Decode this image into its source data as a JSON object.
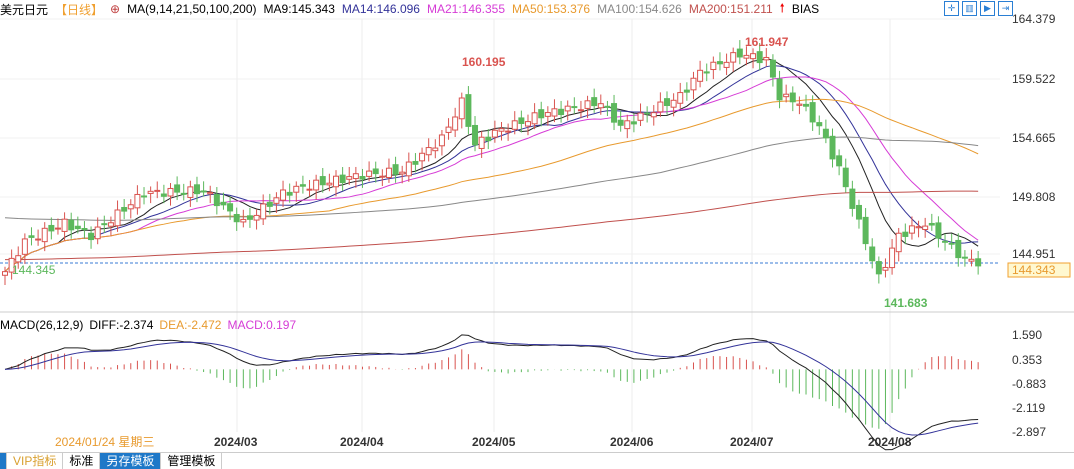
{
  "header": {
    "symbol": "美元日元",
    "period": "【日线】",
    "ma_label": "MA(9,14,21,50,100,200)",
    "ma9": "MA9:145.343",
    "ma14": "MA14:146.096",
    "ma21": "MA21:146.355",
    "ma50": "MA50:153.376",
    "ma100": "MA100:154.626",
    "ma200": "MA200:151.211",
    "bias": "BIAS"
  },
  "macd_header": {
    "label": "MACD(26,12,9)",
    "diff": "DIFF:-2.374",
    "dea": "DEA:-2.472",
    "macd": "MACD:0.197"
  },
  "bottom_tabs": [
    "VIP指标",
    "标准",
    "另存模板",
    "管理模板"
  ],
  "colors": {
    "ma9": "#222222",
    "ma14": "#333399",
    "ma21": "#d63cd6",
    "ma50": "#e89a2e",
    "ma100": "#888888",
    "ma200": "#c0504d",
    "up": "#d9534f",
    "down": "#5cb85c"
  },
  "chart_data": {
    "type": "candlestick",
    "price_ticks": [
      "164.379",
      "159.522",
      "154.665",
      "149.808",
      "144.951"
    ],
    "macd_ticks": [
      "1.590",
      "0.353",
      "-0.883",
      "-2.119",
      "-2.897"
    ],
    "x_labels": [
      "2024/01/24 星期三",
      "2024/03",
      "2024/04",
      "2024/05",
      "2024/06",
      "2024/07",
      "2024/08"
    ],
    "annotations": {
      "high1": "160.195",
      "high2": "161.947",
      "low": "141.683",
      "start": "144.345",
      "last": "144.343"
    },
    "close_keypoints": [
      [
        0,
        143.5
      ],
      [
        3,
        146
      ],
      [
        9,
        147.5
      ],
      [
        13,
        146.5
      ],
      [
        21,
        150
      ],
      [
        30,
        150.2
      ],
      [
        36,
        147.5
      ],
      [
        42,
        150
      ],
      [
        45,
        150.5
      ],
      [
        54,
        151.5
      ],
      [
        60,
        151.8
      ],
      [
        66,
        154.5
      ],
      [
        69,
        157.5
      ],
      [
        71,
        154
      ],
      [
        74,
        155
      ],
      [
        81,
        156.5
      ],
      [
        90,
        157.5
      ],
      [
        93,
        155.5
      ],
      [
        102,
        158
      ],
      [
        105,
        160
      ],
      [
        111,
        161.5
      ],
      [
        115,
        161
      ],
      [
        117,
        158
      ],
      [
        120,
        157.5
      ],
      [
        123,
        155.5
      ],
      [
        126,
        152
      ],
      [
        129,
        147.5
      ],
      [
        132,
        143
      ],
      [
        135,
        146.5
      ],
      [
        139,
        147.5
      ],
      [
        142,
        146
      ],
      [
        145,
        144.5
      ],
      [
        147,
        144.3
      ]
    ]
  }
}
